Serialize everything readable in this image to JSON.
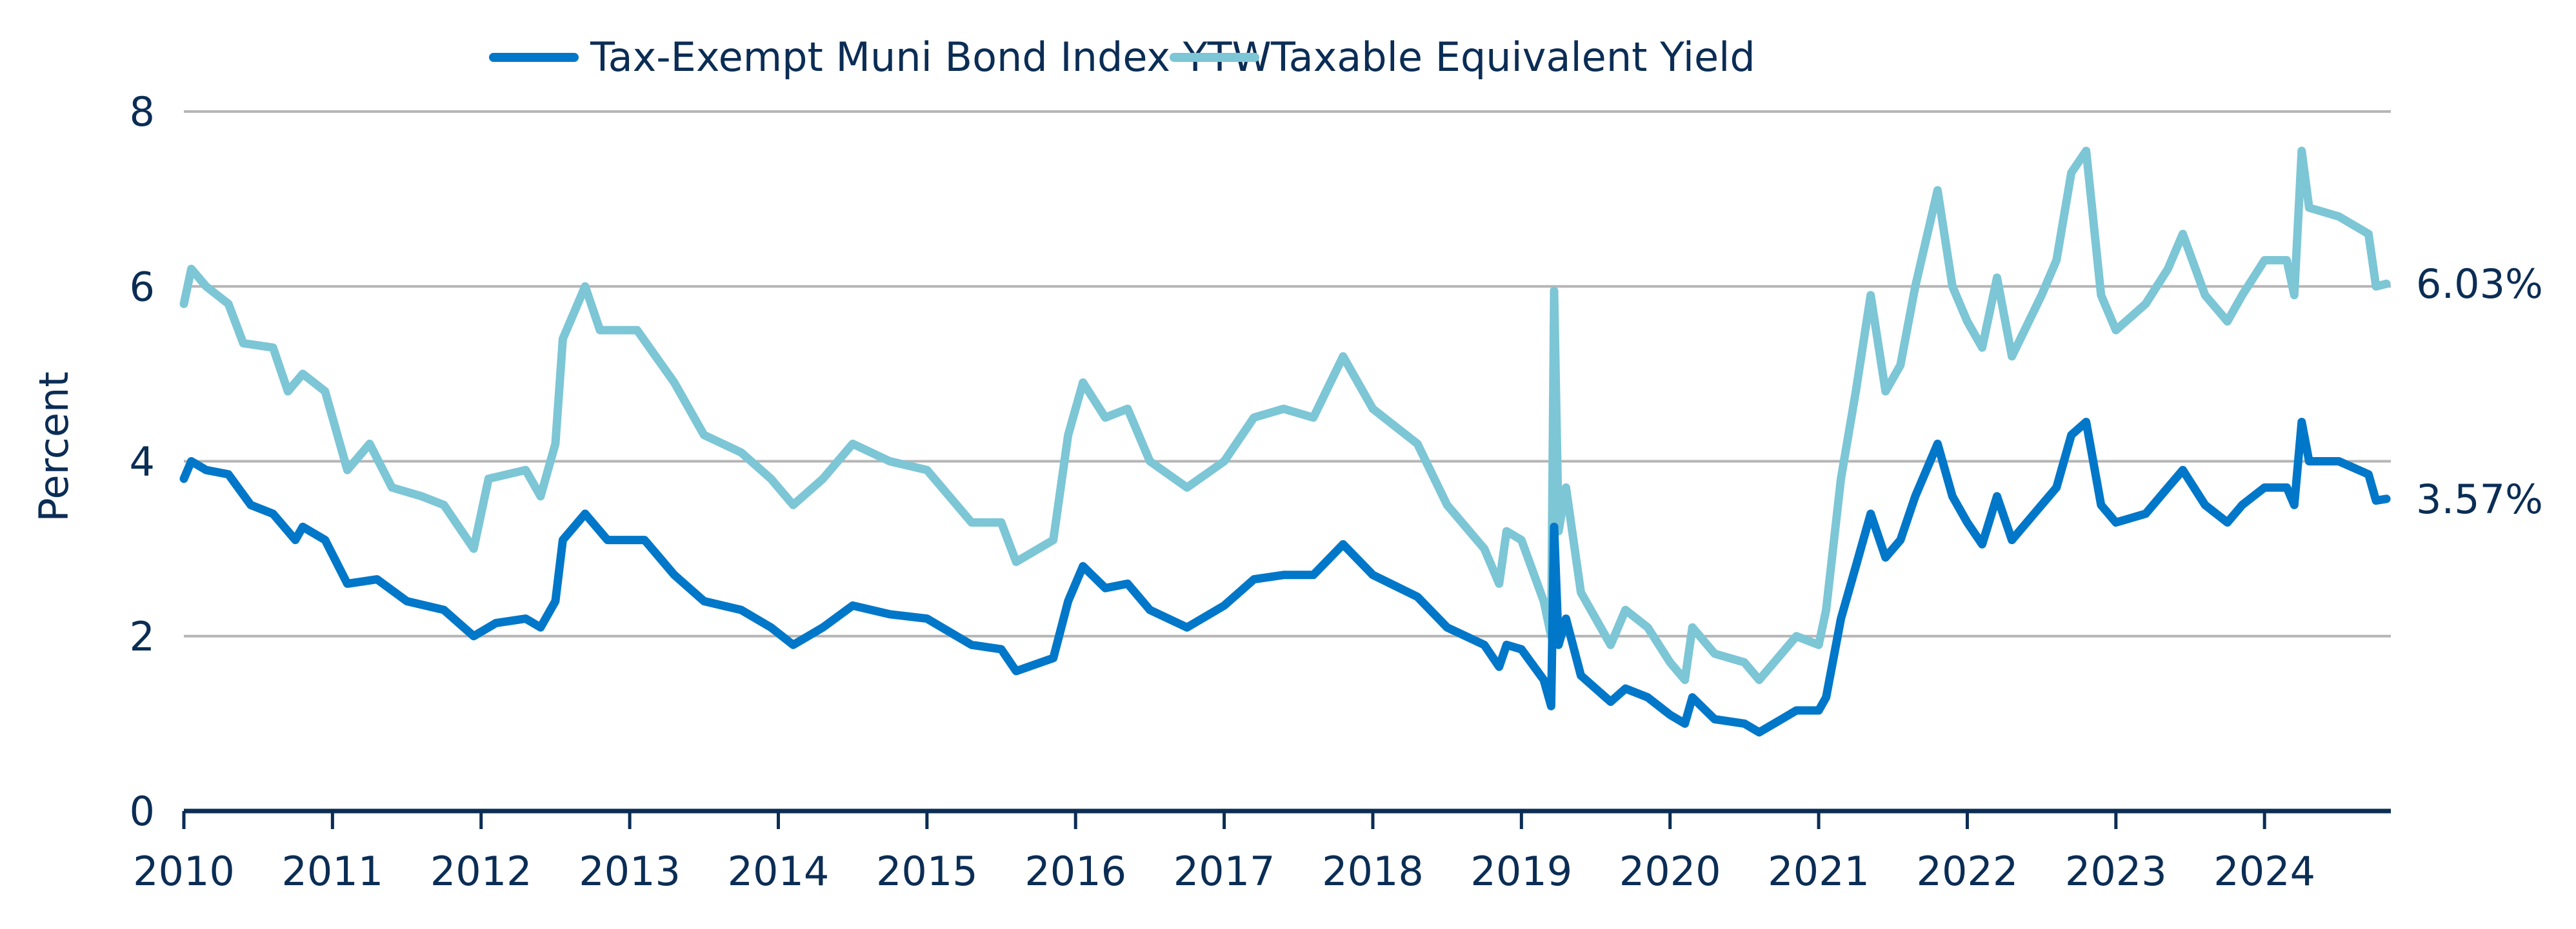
{
  "chart_data": {
    "type": "line",
    "title": "",
    "xlabel": "",
    "ylabel": "Percent",
    "xlim": [
      2010,
      2024.85
    ],
    "ylim": [
      0,
      8
    ],
    "yticks": [
      0,
      2,
      4,
      6,
      8
    ],
    "xticks": [
      2010,
      2011,
      2012,
      2013,
      2014,
      2015,
      2016,
      2017,
      2018,
      2019,
      2020,
      2021,
      2022,
      2023,
      2024
    ],
    "grid": "horizontal",
    "legend_position": "top",
    "series": [
      {
        "name": "Tax-Exempt Muni Bond Index YTW",
        "color": "#0077c8",
        "end_label": "3.57%",
        "points": [
          [
            2010.0,
            3.8
          ],
          [
            2010.05,
            4.0
          ],
          [
            2010.15,
            3.9
          ],
          [
            2010.3,
            3.85
          ],
          [
            2010.45,
            3.5
          ],
          [
            2010.6,
            3.4
          ],
          [
            2010.75,
            3.1
          ],
          [
            2010.8,
            3.25
          ],
          [
            2010.95,
            3.1
          ],
          [
            2011.1,
            2.6
          ],
          [
            2011.3,
            2.65
          ],
          [
            2011.5,
            2.4
          ],
          [
            2011.75,
            2.3
          ],
          [
            2011.95,
            2.0
          ],
          [
            2012.1,
            2.15
          ],
          [
            2012.3,
            2.2
          ],
          [
            2012.4,
            2.1
          ],
          [
            2012.5,
            2.4
          ],
          [
            2012.55,
            3.1
          ],
          [
            2012.7,
            3.4
          ],
          [
            2012.85,
            3.1
          ],
          [
            2013.1,
            3.1
          ],
          [
            2013.3,
            2.7
          ],
          [
            2013.5,
            2.4
          ],
          [
            2013.75,
            2.3
          ],
          [
            2013.95,
            2.1
          ],
          [
            2014.1,
            1.9
          ],
          [
            2014.3,
            2.1
          ],
          [
            2014.5,
            2.35
          ],
          [
            2014.75,
            2.25
          ],
          [
            2015.0,
            2.2
          ],
          [
            2015.3,
            1.9
          ],
          [
            2015.5,
            1.85
          ],
          [
            2015.6,
            1.6
          ],
          [
            2015.85,
            1.75
          ],
          [
            2015.95,
            2.4
          ],
          [
            2016.05,
            2.8
          ],
          [
            2016.2,
            2.55
          ],
          [
            2016.35,
            2.6
          ],
          [
            2016.5,
            2.3
          ],
          [
            2016.75,
            2.1
          ],
          [
            2017.0,
            2.35
          ],
          [
            2017.2,
            2.65
          ],
          [
            2017.4,
            2.7
          ],
          [
            2017.6,
            2.7
          ],
          [
            2017.8,
            3.05
          ],
          [
            2018.0,
            2.7
          ],
          [
            2018.3,
            2.45
          ],
          [
            2018.5,
            2.1
          ],
          [
            2018.75,
            1.9
          ],
          [
            2018.85,
            1.65
          ],
          [
            2018.9,
            1.9
          ],
          [
            2019.0,
            1.85
          ],
          [
            2019.15,
            1.5
          ],
          [
            2019.2,
            1.2
          ],
          [
            2019.22,
            3.25
          ],
          [
            2019.25,
            1.9
          ],
          [
            2019.3,
            2.2
          ],
          [
            2019.4,
            1.55
          ],
          [
            2019.5,
            1.4
          ],
          [
            2019.6,
            1.25
          ],
          [
            2019.7,
            1.4
          ],
          [
            2019.85,
            1.3
          ],
          [
            2020.0,
            1.1
          ],
          [
            2020.1,
            1.0
          ],
          [
            2020.15,
            1.3
          ],
          [
            2020.3,
            1.05
          ],
          [
            2020.5,
            1.0
          ],
          [
            2020.6,
            0.9
          ],
          [
            2020.75,
            1.05
          ],
          [
            2020.85,
            1.15
          ],
          [
            2021.0,
            1.15
          ],
          [
            2021.05,
            1.3
          ],
          [
            2021.15,
            2.2
          ],
          [
            2021.25,
            2.8
          ],
          [
            2021.35,
            3.4
          ],
          [
            2021.45,
            2.9
          ],
          [
            2021.55,
            3.1
          ],
          [
            2021.65,
            3.6
          ],
          [
            2021.8,
            4.2
          ],
          [
            2021.9,
            3.6
          ],
          [
            2022.0,
            3.3
          ],
          [
            2022.1,
            3.05
          ],
          [
            2022.2,
            3.6
          ],
          [
            2022.3,
            3.1
          ],
          [
            2022.5,
            3.5
          ],
          [
            2022.6,
            3.7
          ],
          [
            2022.7,
            4.3
          ],
          [
            2022.8,
            4.45
          ],
          [
            2022.9,
            3.5
          ],
          [
            2023.0,
            3.3
          ],
          [
            2023.2,
            3.4
          ],
          [
            2023.35,
            3.7
          ],
          [
            2023.45,
            3.9
          ],
          [
            2023.6,
            3.5
          ],
          [
            2023.75,
            3.3
          ],
          [
            2023.85,
            3.5
          ],
          [
            2024.0,
            3.7
          ],
          [
            2024.15,
            3.7
          ],
          [
            2024.2,
            3.5
          ],
          [
            2024.25,
            4.45
          ],
          [
            2024.3,
            4.0
          ],
          [
            2024.5,
            4.0
          ],
          [
            2024.7,
            3.85
          ],
          [
            2024.75,
            3.55
          ],
          [
            2024.82,
            3.57
          ]
        ]
      },
      {
        "name": "Taxable Equivalent Yield",
        "color": "#7cc6d6",
        "end_label": "6.03%",
        "points": [
          [
            2010.0,
            5.8
          ],
          [
            2010.05,
            6.2
          ],
          [
            2010.15,
            6.0
          ],
          [
            2010.3,
            5.8
          ],
          [
            2010.4,
            5.35
          ],
          [
            2010.6,
            5.3
          ],
          [
            2010.7,
            4.8
          ],
          [
            2010.8,
            5.0
          ],
          [
            2010.95,
            4.8
          ],
          [
            2011.1,
            3.9
          ],
          [
            2011.25,
            4.2
          ],
          [
            2011.4,
            3.7
          ],
          [
            2011.6,
            3.6
          ],
          [
            2011.75,
            3.5
          ],
          [
            2011.95,
            3.0
          ],
          [
            2012.05,
            3.8
          ],
          [
            2012.3,
            3.9
          ],
          [
            2012.4,
            3.6
          ],
          [
            2012.5,
            4.2
          ],
          [
            2012.55,
            5.4
          ],
          [
            2012.7,
            6.0
          ],
          [
            2012.8,
            5.5
          ],
          [
            2013.05,
            5.5
          ],
          [
            2013.3,
            4.9
          ],
          [
            2013.5,
            4.3
          ],
          [
            2013.75,
            4.1
          ],
          [
            2013.95,
            3.8
          ],
          [
            2014.1,
            3.5
          ],
          [
            2014.3,
            3.8
          ],
          [
            2014.5,
            4.2
          ],
          [
            2014.75,
            4.0
          ],
          [
            2015.0,
            3.9
          ],
          [
            2015.3,
            3.3
          ],
          [
            2015.5,
            3.3
          ],
          [
            2015.6,
            2.85
          ],
          [
            2015.85,
            3.1
          ],
          [
            2015.95,
            4.3
          ],
          [
            2016.05,
            4.9
          ],
          [
            2016.2,
            4.5
          ],
          [
            2016.35,
            4.6
          ],
          [
            2016.5,
            4.0
          ],
          [
            2016.75,
            3.7
          ],
          [
            2017.0,
            4.0
          ],
          [
            2017.2,
            4.5
          ],
          [
            2017.4,
            4.6
          ],
          [
            2017.6,
            4.5
          ],
          [
            2017.8,
            5.2
          ],
          [
            2018.0,
            4.6
          ],
          [
            2018.3,
            4.2
          ],
          [
            2018.5,
            3.5
          ],
          [
            2018.75,
            3.0
          ],
          [
            2018.85,
            2.6
          ],
          [
            2018.9,
            3.2
          ],
          [
            2019.0,
            3.1
          ],
          [
            2019.15,
            2.4
          ],
          [
            2019.2,
            2.0
          ],
          [
            2019.22,
            5.95
          ],
          [
            2019.25,
            3.2
          ],
          [
            2019.3,
            3.7
          ],
          [
            2019.4,
            2.5
          ],
          [
            2019.5,
            2.2
          ],
          [
            2019.6,
            1.9
          ],
          [
            2019.7,
            2.3
          ],
          [
            2019.85,
            2.1
          ],
          [
            2020.0,
            1.7
          ],
          [
            2020.1,
            1.5
          ],
          [
            2020.15,
            2.1
          ],
          [
            2020.3,
            1.8
          ],
          [
            2020.5,
            1.7
          ],
          [
            2020.6,
            1.5
          ],
          [
            2020.75,
            1.8
          ],
          [
            2020.85,
            2.0
          ],
          [
            2021.0,
            1.9
          ],
          [
            2021.05,
            2.3
          ],
          [
            2021.15,
            3.8
          ],
          [
            2021.25,
            4.8
          ],
          [
            2021.35,
            5.9
          ],
          [
            2021.45,
            4.8
          ],
          [
            2021.55,
            5.1
          ],
          [
            2021.65,
            6.0
          ],
          [
            2021.8,
            7.1
          ],
          [
            2021.9,
            6.0
          ],
          [
            2022.0,
            5.6
          ],
          [
            2022.1,
            5.3
          ],
          [
            2022.2,
            6.1
          ],
          [
            2022.3,
            5.2
          ],
          [
            2022.5,
            5.9
          ],
          [
            2022.6,
            6.3
          ],
          [
            2022.7,
            7.3
          ],
          [
            2022.8,
            7.55
          ],
          [
            2022.9,
            5.9
          ],
          [
            2023.0,
            5.5
          ],
          [
            2023.2,
            5.8
          ],
          [
            2023.35,
            6.2
          ],
          [
            2023.45,
            6.6
          ],
          [
            2023.6,
            5.9
          ],
          [
            2023.75,
            5.6
          ],
          [
            2023.85,
            5.9
          ],
          [
            2024.0,
            6.3
          ],
          [
            2024.15,
            6.3
          ],
          [
            2024.2,
            5.9
          ],
          [
            2024.25,
            7.55
          ],
          [
            2024.3,
            6.9
          ],
          [
            2024.5,
            6.8
          ],
          [
            2024.7,
            6.6
          ],
          [
            2024.75,
            6.0
          ],
          [
            2024.82,
            6.03
          ]
        ]
      }
    ]
  }
}
